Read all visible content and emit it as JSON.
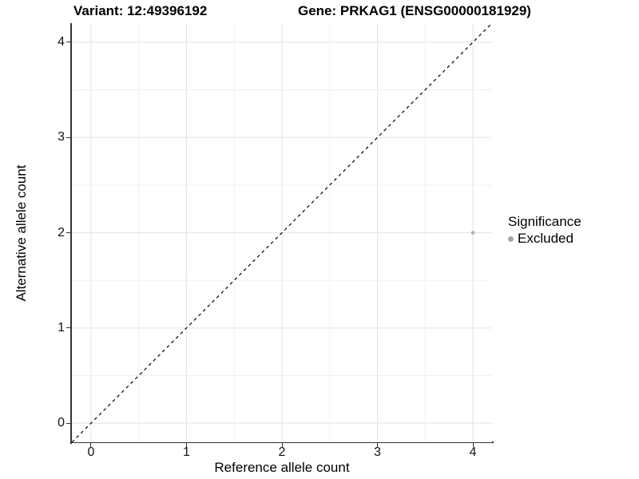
{
  "chart_data": {
    "type": "scatter",
    "title_left": "Variant: 12:49396192",
    "title_right": "Gene: PRKAG1 (ENSG00000181929)",
    "xlabel": "Reference allele count",
    "ylabel": "Alternative allele count",
    "xlim": [
      -0.2,
      4.2
    ],
    "ylim": [
      -0.2,
      4.2
    ],
    "x_ticks": [
      0,
      1,
      2,
      3,
      4
    ],
    "y_ticks": [
      0,
      1,
      2,
      3,
      4
    ],
    "x_minor_ticks": [
      0.5,
      1.5,
      2.5,
      3.5
    ],
    "y_minor_ticks": [
      0.5,
      1.5,
      2.5,
      3.5
    ],
    "grid": "major-and-minor",
    "points": [
      {
        "x": 4,
        "y": 2,
        "significance": "Excluded",
        "color": "#b0b0b0"
      }
    ],
    "reference_line": {
      "kind": "identity-abline",
      "from": [
        -0.2,
        -0.2
      ],
      "to": [
        4.2,
        4.2
      ],
      "style": "dashed",
      "color": "#000000"
    },
    "legend": {
      "title": "Significance",
      "position": "right",
      "items": [
        {
          "label": "Excluded",
          "color": "#a6a6a6"
        }
      ]
    }
  },
  "colors": {
    "background": "#ffffff",
    "axis_line": "#333333",
    "grid_major": "#e3e3e3",
    "grid_minor": "#f0f0f0",
    "tick_text": "#111111",
    "title_text": "#000000",
    "point": "#b0b0b0",
    "dashed_line": "#000000"
  }
}
